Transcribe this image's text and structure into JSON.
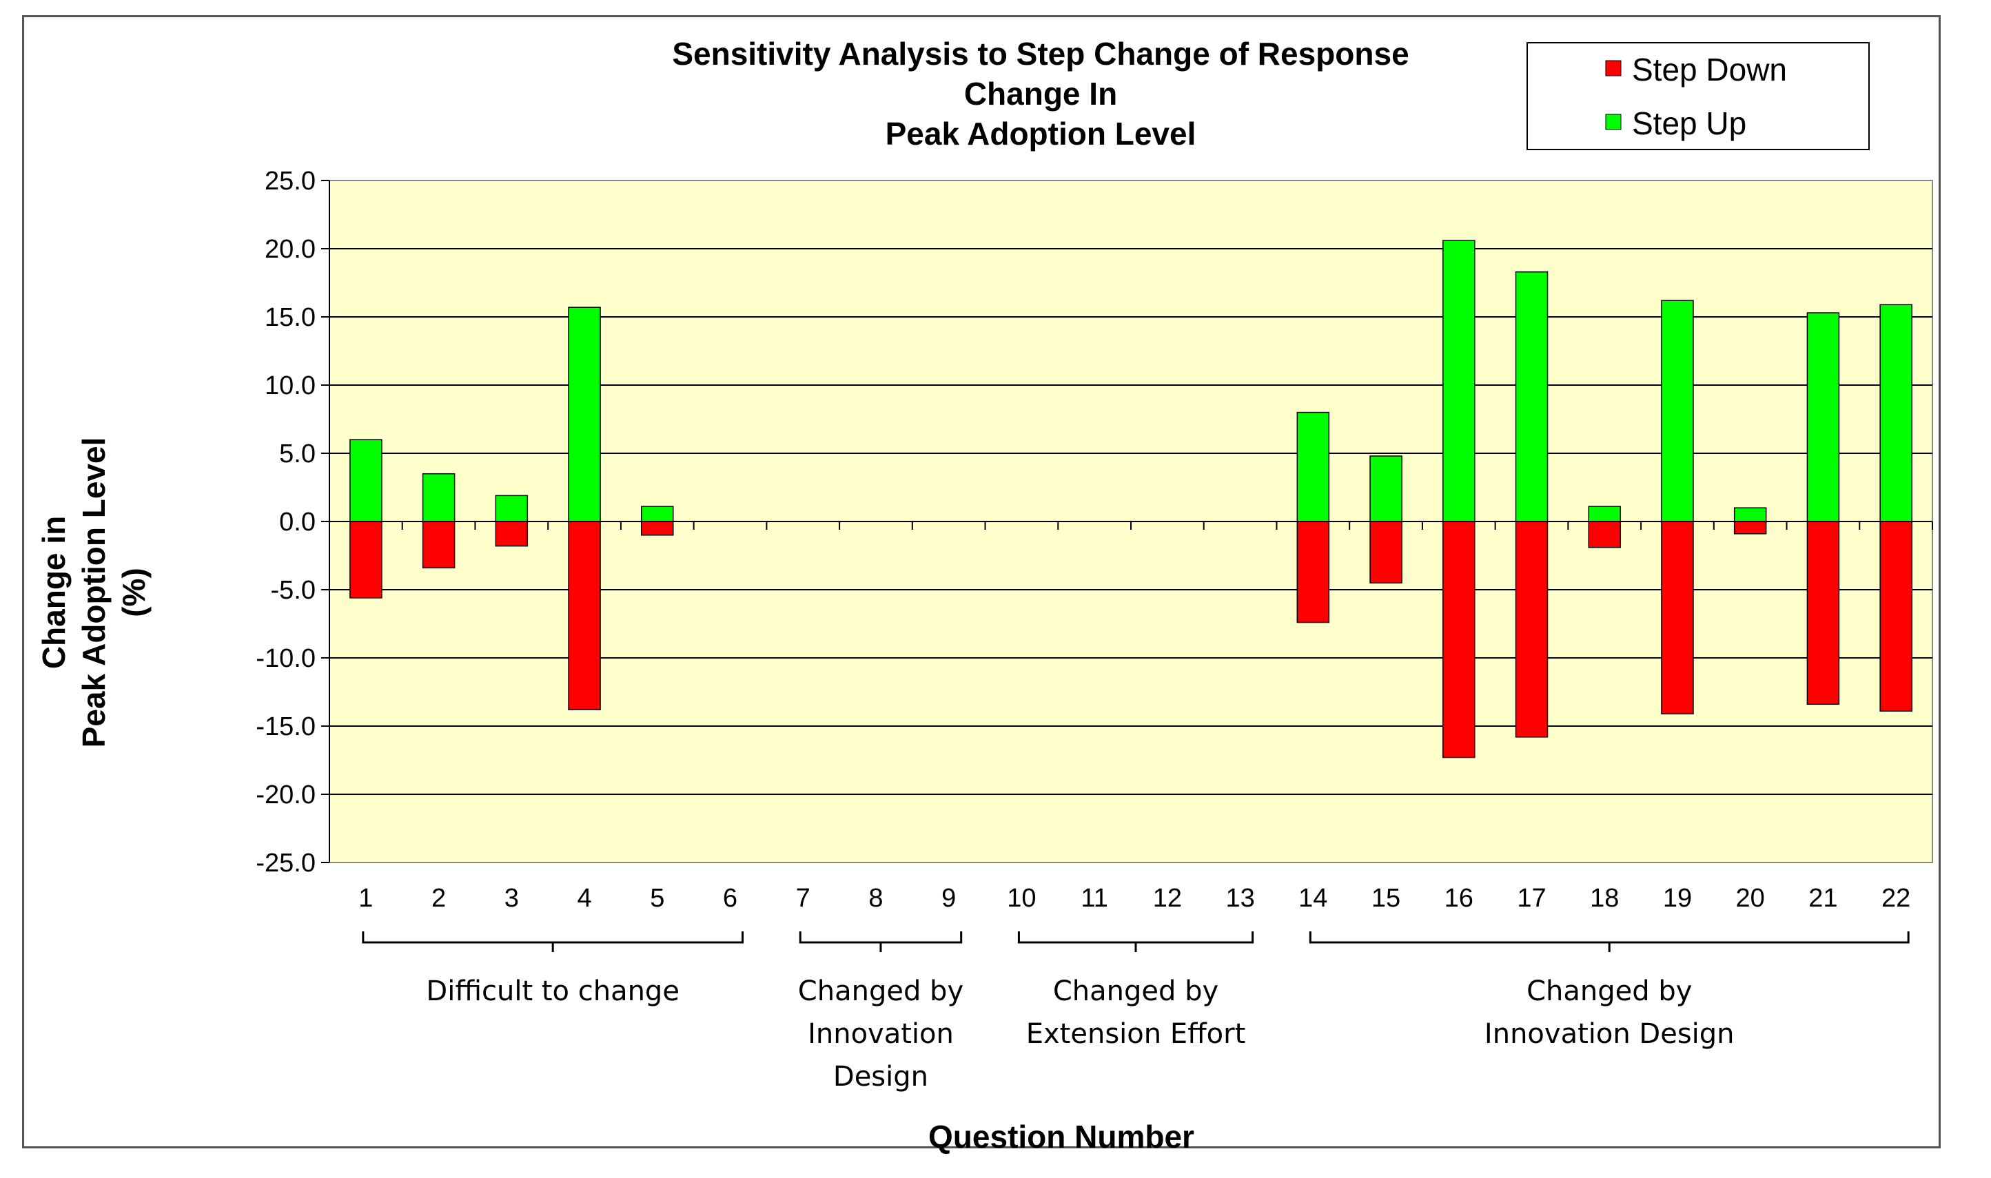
{
  "chart_data": {
    "type": "bar",
    "title": [
      "Sensitivity Analysis to Step Change of Response",
      "Change In",
      "Peak Adoption Level"
    ],
    "xlabel": "Question Number",
    "ylabel": [
      "Change in",
      "Peak Adoption Level",
      "(%)"
    ],
    "ylim": [
      -25,
      25
    ],
    "ytick_step": 5,
    "ytick_labels": [
      "25.0",
      "20.0",
      "15.0",
      "10.0",
      "5.0",
      "0.0",
      "-5.0",
      "-10.0",
      "-15.0",
      "-20.0",
      "-25.0"
    ],
    "grid": true,
    "legend_position": "top-right",
    "categories": [
      "1",
      "2",
      "3",
      "4",
      "5",
      "6",
      "7",
      "8",
      "9",
      "10",
      "11",
      "12",
      "13",
      "14",
      "15",
      "16",
      "17",
      "18",
      "19",
      "20",
      "21",
      "22"
    ],
    "series": [
      {
        "name": "Step Down",
        "color": "#ff0000",
        "values": [
          -5.6,
          -3.4,
          -1.8,
          -13.8,
          -1.0,
          0,
          0,
          0,
          0,
          0,
          0,
          0,
          0,
          -7.4,
          -4.5,
          -17.3,
          -15.8,
          -1.9,
          -14.1,
          -0.9,
          -13.4,
          -13.9
        ]
      },
      {
        "name": "Step Up",
        "color": "#00ff00",
        "values": [
          6.0,
          3.5,
          1.9,
          15.7,
          1.1,
          0,
          0,
          0,
          0,
          0,
          0,
          0,
          0,
          8.0,
          4.8,
          20.6,
          18.3,
          1.1,
          16.2,
          1.0,
          15.3,
          15.9
        ]
      }
    ],
    "groups": [
      {
        "label": [
          "Difficult to change"
        ],
        "from": 1,
        "to": 6
      },
      {
        "label": [
          "Changed by",
          "Innovation",
          "Design"
        ],
        "from": 7,
        "to": 9
      },
      {
        "label": [
          "Changed by",
          "Extension Effort"
        ],
        "from": 10,
        "to": 13
      },
      {
        "label": [
          "Changed by",
          "Innovation Design"
        ],
        "from": 14,
        "to": 22
      }
    ],
    "plot_background": "#ffffcc"
  }
}
